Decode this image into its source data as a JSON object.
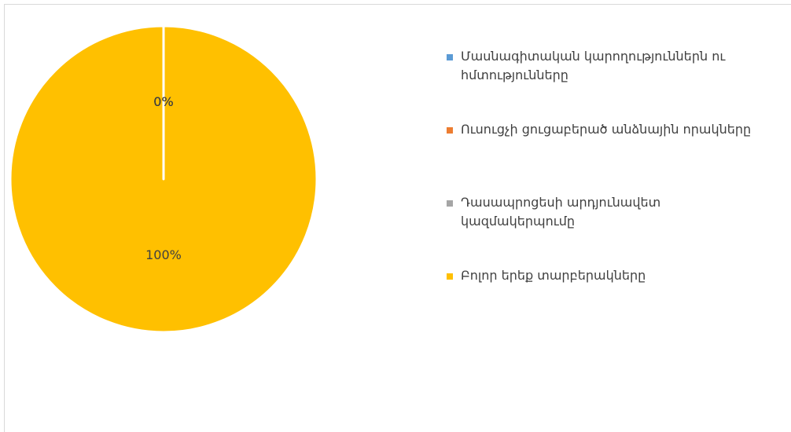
{
  "chart_data": {
    "type": "pie",
    "categories": [
      "Մասնագիտական կարողություններն ու հմտությունները",
      "Ուսուցչի ցուցաբերած անձնային որակները",
      "Դասապրոցեսի արդյունավետ կազմակերպումը",
      "Բոլոր երեք տարբերակները"
    ],
    "values": [
      0,
      0,
      0,
      100
    ],
    "value_labels": [
      "0%",
      "0%",
      "0%",
      "100%"
    ],
    "colors": [
      "#5b9bd5",
      "#ed7d31",
      "#a5a5a5",
      "#ffc000"
    ],
    "legend": "right"
  }
}
